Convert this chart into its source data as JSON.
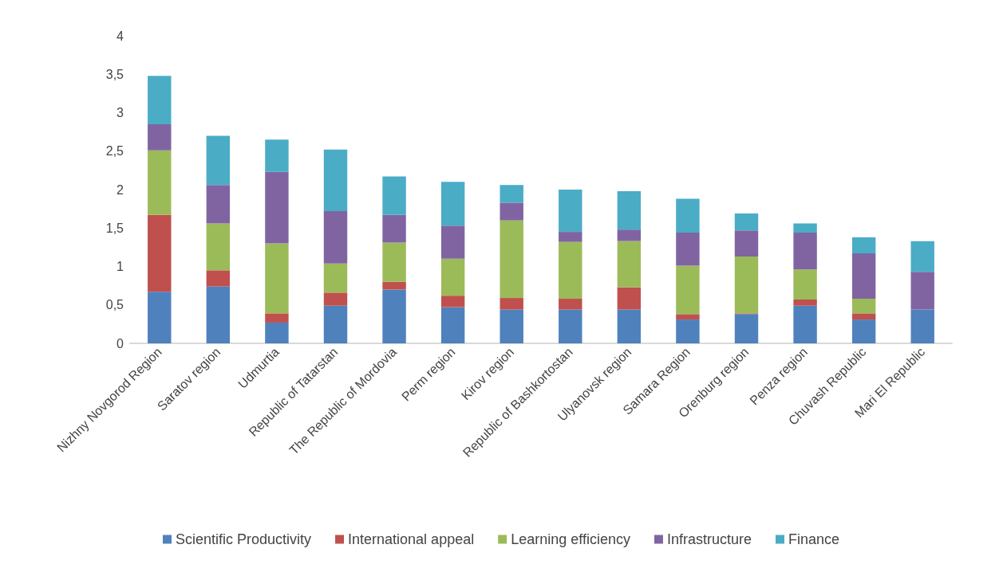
{
  "chart_data": {
    "type": "bar",
    "stacked": true,
    "legend": "bottom",
    "grid": false,
    "categories": [
      "Nizhny Novgorod Region",
      "Saratov region",
      "Udmurtia",
      "Republic of Tatarstan",
      "The Republic of Mordovia",
      "Perm region",
      "Kirov region",
      "Republic of Bashkortostan",
      "Ulyanovsk region",
      "Samara Region",
      "Orenburg region",
      "Penza region",
      "Chuvash Republic",
      "Mari El Republic"
    ],
    "ylim": [
      0,
      4
    ],
    "yticks": [
      0,
      {
        "value": 0.5,
        "label": "0,5"
      },
      1,
      {
        "value": 1.5,
        "label": "1,5"
      },
      2,
      {
        "value": 2.5,
        "label": "2,5"
      },
      3,
      {
        "value": 3.5,
        "label": "3,5"
      },
      4
    ],
    "series": [
      {
        "name": "Scientific Productivity",
        "color": "#4f81bd",
        "values": [
          0.67,
          0.74,
          0.27,
          0.49,
          0.7,
          0.47,
          0.44,
          0.44,
          0.44,
          0.31,
          0.38,
          0.49,
          0.31,
          0.44
        ]
      },
      {
        "name": "International appeal",
        "color": "#c0504d",
        "values": [
          1.0,
          0.21,
          0.12,
          0.17,
          0.1,
          0.15,
          0.15,
          0.14,
          0.29,
          0.07,
          0.01,
          0.08,
          0.08,
          0
        ]
      },
      {
        "name": "Learning efficiency",
        "color": "#9bbb59",
        "values": [
          0.84,
          0.61,
          0.91,
          0.38,
          0.51,
          0.48,
          1.01,
          0.74,
          0.6,
          0.63,
          0.74,
          0.39,
          0.19,
          0
        ]
      },
      {
        "name": "Infrastructure",
        "color": "#8064a2",
        "values": [
          0.34,
          0.5,
          0.93,
          0.68,
          0.36,
          0.43,
          0.23,
          0.13,
          0.15,
          0.43,
          0.34,
          0.48,
          0.59,
          0.49
        ]
      },
      {
        "name": "Finance",
        "color": "#4bacc6",
        "values": [
          0.63,
          0.64,
          0.42,
          0.8,
          0.5,
          0.57,
          0.23,
          0.55,
          0.5,
          0.44,
          0.22,
          0.12,
          0.21,
          0.4
        ]
      }
    ]
  }
}
